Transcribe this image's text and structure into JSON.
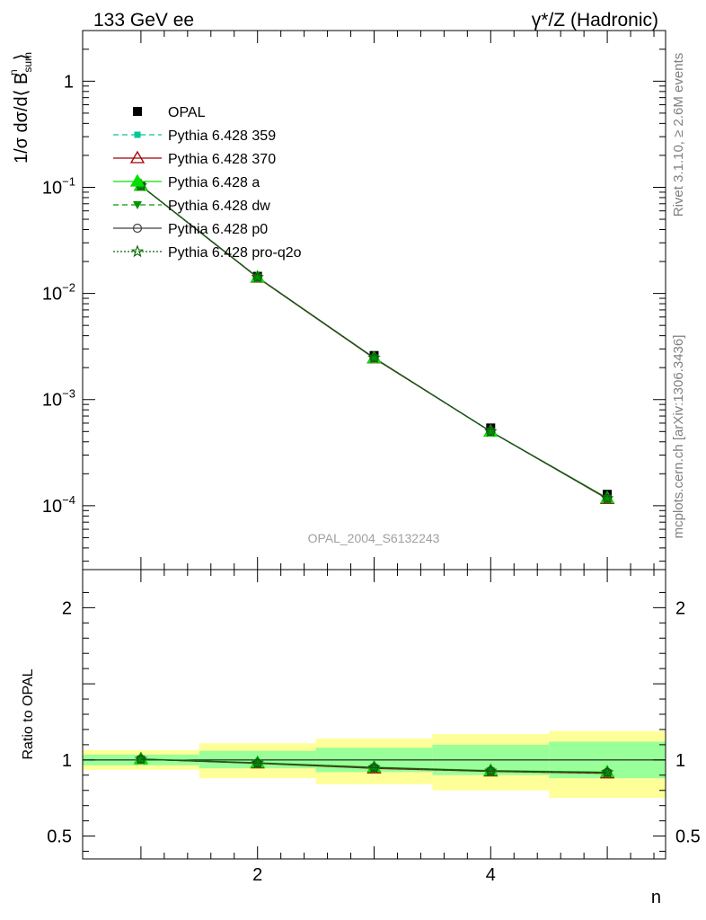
{
  "header": {
    "left_title": "133 GeV ee",
    "right_title": "γ*/Z (Hadronic)"
  },
  "side_labels": {
    "rivet": "Rivet 3.1.10, ≥ 2.6M events",
    "mcplots": "mcplots.cern.ch [arXiv:1306.3436]"
  },
  "watermark": "OPAL_2004_S6132243",
  "colors": {
    "data": "#000000",
    "p359": "#00c896",
    "p370": "#a00000",
    "pa": "#00e000",
    "pdw": "#009600",
    "pp0": "#404040",
    "pq2o": "#006400",
    "band_inner": "#99ff99",
    "band_outer": "#ffff99"
  },
  "chart_data": [
    {
      "type": "line",
      "title": "",
      "xlabel": "n",
      "ylabel": "1/σ dσ/d⟨ B_sum^n ⟩",
      "ylabel_main": "1/σ dσ/d⟨ B",
      "ylabel_sup": "n",
      "ylabel_sub": "sum",
      "ylabel_close": "⟩",
      "yscale": "log",
      "xlim": [
        0.5,
        5.5
      ],
      "ylim": [
        2.5e-05,
        3.0
      ],
      "x": [
        1,
        2,
        3,
        4,
        5
      ],
      "y_ticks": [
        {
          "value": 1,
          "base": "1",
          "exp": ""
        },
        {
          "value": 0.1,
          "base": "10",
          "exp": "−1"
        },
        {
          "value": 0.01,
          "base": "10",
          "exp": "−2"
        },
        {
          "value": 0.001,
          "base": "10",
          "exp": "−3"
        },
        {
          "value": 0.0001,
          "base": "10",
          "exp": "−4"
        }
      ],
      "series": [
        {
          "name": "OPAL",
          "key": "opal",
          "values": [
            0.103,
            0.0145,
            0.0026,
            0.00054,
            0.000128
          ]
        },
        {
          "name": "Pythia 6.428 359",
          "key": "p359",
          "values": [
            0.1035,
            0.0142,
            0.00247,
            0.0005,
            0.000117
          ]
        },
        {
          "name": "Pythia 6.428 370",
          "key": "p370",
          "values": [
            0.1035,
            0.0141,
            0.00245,
            0.0005,
            0.000116
          ]
        },
        {
          "name": "Pythia 6.428 a",
          "key": "pa",
          "values": [
            0.1036,
            0.0142,
            0.00247,
            0.0005,
            0.000118
          ]
        },
        {
          "name": "Pythia 6.428 dw",
          "key": "pdw",
          "values": [
            0.1035,
            0.0142,
            0.00246,
            0.0005,
            0.000117
          ]
        },
        {
          "name": "Pythia 6.428 p0",
          "key": "pp0",
          "values": [
            0.1035,
            0.0142,
            0.00247,
            0.0005,
            0.000117
          ]
        },
        {
          "name": "Pythia 6.428 pro-q2o",
          "key": "pq2o",
          "values": [
            0.1035,
            0.0142,
            0.00247,
            0.0005,
            0.000117
          ]
        }
      ]
    },
    {
      "type": "line",
      "title": "",
      "xlabel": "n",
      "ylabel": "Ratio to OPAL",
      "xlim": [
        0.5,
        5.5
      ],
      "ylim": [
        0.35,
        2.25
      ],
      "x_ticks": [
        2,
        4
      ],
      "y_ticks": [
        0.5,
        1,
        2
      ],
      "bands": {
        "edges": [
          0.5,
          1.5,
          2.5,
          3.5,
          4.5,
          5.5
        ],
        "inner_low": [
          0.965,
          0.945,
          0.92,
          0.9,
          0.88
        ],
        "inner_high": [
          1.035,
          1.06,
          1.08,
          1.1,
          1.12
        ],
        "outer_low": [
          0.935,
          0.88,
          0.84,
          0.8,
          0.75
        ],
        "outer_high": [
          1.065,
          1.11,
          1.14,
          1.17,
          1.19
        ]
      },
      "series": [
        {
          "name": "Pythia 6.428 359",
          "key": "p359",
          "values": [
            1.005,
            0.98,
            0.95,
            0.928,
            0.918
          ]
        },
        {
          "name": "Pythia 6.428 370",
          "key": "p370",
          "values": [
            1.005,
            0.978,
            0.945,
            0.925,
            0.912
          ]
        },
        {
          "name": "Pythia 6.428 a",
          "key": "pa",
          "values": [
            1.006,
            0.982,
            0.952,
            0.93,
            0.92
          ]
        },
        {
          "name": "Pythia 6.428 dw",
          "key": "pdw",
          "values": [
            1.005,
            0.98,
            0.948,
            0.926,
            0.915
          ]
        },
        {
          "name": "Pythia 6.428 p0",
          "key": "pp0",
          "values": [
            1.005,
            0.98,
            0.95,
            0.928,
            0.918
          ]
        },
        {
          "name": "Pythia 6.428 pro-q2o",
          "key": "pq2o",
          "values": [
            1.005,
            0.98,
            0.95,
            0.928,
            0.918
          ]
        }
      ]
    }
  ]
}
